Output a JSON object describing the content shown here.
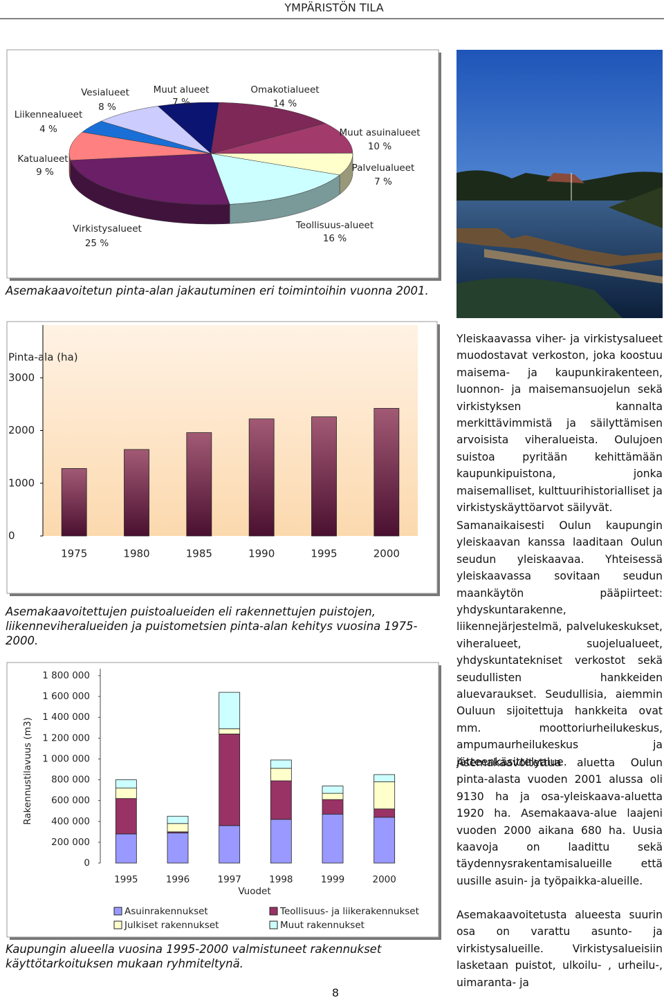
{
  "header": {
    "title": "YMPÄRISTÖN TILA"
  },
  "chart_data": [
    {
      "type": "pie",
      "categories": [
        "Muut alueet",
        "Omakotialueet",
        "Muut asuinalueet",
        "Palvelualueet",
        "Teollisuus-alueet",
        "Virkistysalueet",
        "Katualueet",
        "Liikennealueet",
        "Vesialueet"
      ],
      "values": [
        7,
        14,
        10,
        7,
        16,
        25,
        9,
        4,
        8
      ],
      "value_labels": [
        "7 %",
        "14 %",
        "10 %",
        "7 %",
        "16 %",
        "25 %",
        "9 %",
        "4 %",
        "8 %"
      ],
      "colors": [
        "#0b1470",
        "#7e2858",
        "#a33a6c",
        "#ffffcc",
        "#ccffff",
        "#6a1f66",
        "#ff8080",
        "#1a6fd6",
        "#ccccff"
      ],
      "caption": "Asemakaavoitetun pinta-alan jakautuminen eri toimintoihin vuonna 2001."
    },
    {
      "type": "bar",
      "y_label": "Pinta-ala (ha)",
      "categories": [
        "1975",
        "1980",
        "1985",
        "1990",
        "1995",
        "2000"
      ],
      "values": [
        1280,
        1640,
        1960,
        2220,
        2260,
        2420
      ],
      "color": "#6b2044",
      "ylim": [
        0,
        4000
      ],
      "yticks": [
        0,
        1000,
        2000,
        3000
      ],
      "caption": "Asemakaavoitettujen puistoalueiden eli rakennettujen puistojen, liikenneviheralueiden ja puistometsien pinta-alan kehitys vuosina 1975-2000."
    },
    {
      "type": "stacked_bar",
      "y_label": "Rakennustilavuus (m3)",
      "x_label": "Vuodet",
      "categories": [
        "1995",
        "1996",
        "1997",
        "1998",
        "1999",
        "2000"
      ],
      "series": [
        {
          "name": "Asuinrakennukset",
          "color": "#9999ff",
          "values": [
            280000,
            290000,
            360000,
            420000,
            470000,
            440000
          ]
        },
        {
          "name": "Teollisuus- ja liikerakennukset",
          "color": "#993366",
          "values": [
            340000,
            10000,
            880000,
            370000,
            140000,
            80000
          ]
        },
        {
          "name": "Julkiset rakennukset",
          "color": "#ffffcc",
          "values": [
            100000,
            80000,
            50000,
            120000,
            60000,
            260000
          ]
        },
        {
          "name": "Muut rakennukset",
          "color": "#ccffff",
          "values": [
            80000,
            70000,
            350000,
            80000,
            70000,
            70000
          ]
        }
      ],
      "ylim": [
        0,
        1800000
      ],
      "yticks": [
        0,
        {
          "value": 200000,
          "label": "200 000"
        },
        {
          "value": 400000,
          "label": "400 000"
        },
        {
          "value": 600000,
          "label": "600 000"
        },
        {
          "value": 800000,
          "label": "800 000"
        },
        {
          "value": 1000000,
          "label": "1 000 000"
        },
        {
          "value": 1200000,
          "label": "1 200 000"
        },
        {
          "value": 1400000,
          "label": "1 400 000"
        },
        {
          "value": 1600000,
          "label": "1 600 000"
        },
        {
          "value": 1800000,
          "label": "1 800 000"
        }
      ],
      "caption": "Kaupungin alueella vuosina 1995-2000 valmistuneet rakennukset käyttötarkoituksen mukaan ryhmiteltynä."
    }
  ],
  "paragraphs": [
    "Yleiskaavassa viher- ja virkistysalueet muodostavat verkoston, joka koostuu maisema- ja kaupunkirakenteen, luonnon- ja maisemansuojelun sekä virkistyksen kannalta merkittävimmistä ja säilyttämisen arvoisista viheralueista. Oulujoen suistoa pyritään kehittämään kaupunkipuistona, jonka maisemalliset, kulttuurihistorialliset ja virkistyskäyttöarvot säilyvät.",
    "Samanaikaisesti Oulun kaupungin yleiskaavan kanssa laaditaan Oulun seudun yleiskaavaa. Yhteisessä yleiskaavassa sovitaan seudun maankäytön pääpiirteet: yhdyskuntarakenne, liikennejärjestelmä, palvelukeskukset, viheralueet, suojelualueet, yhdyskuntatekniset verkostot sekä seudullisten hankkeiden aluevaraukset. Seudullisia, aiemmin Ouluun sijoitettuja hankkeita ovat mm. moottoriurheilukeskus, ampumaurheilukeskus ja jätteenkäsittelyalue.",
    "Asemakaavoitettua aluetta Oulun pinta-alasta vuoden 2001 alussa oli 9130 ha ja osa-yleiskaava-aluetta 1920 ha. Asemakaava-alue laajeni vuoden 2000 aikana 680 ha. Uusia kaavoja on laadittu sekä täydennysrakentamisalueille että uusille asuin- ja työpaikka-alueille.",
    "Asemakaavoitetusta alueesta suurin osa on varattu asunto- ja virkistysalueille. Virkistysalueisiin lasketaan puistot, ulkoilu- , urheilu-, uimaranta- ja"
  ],
  "page_number": "8"
}
